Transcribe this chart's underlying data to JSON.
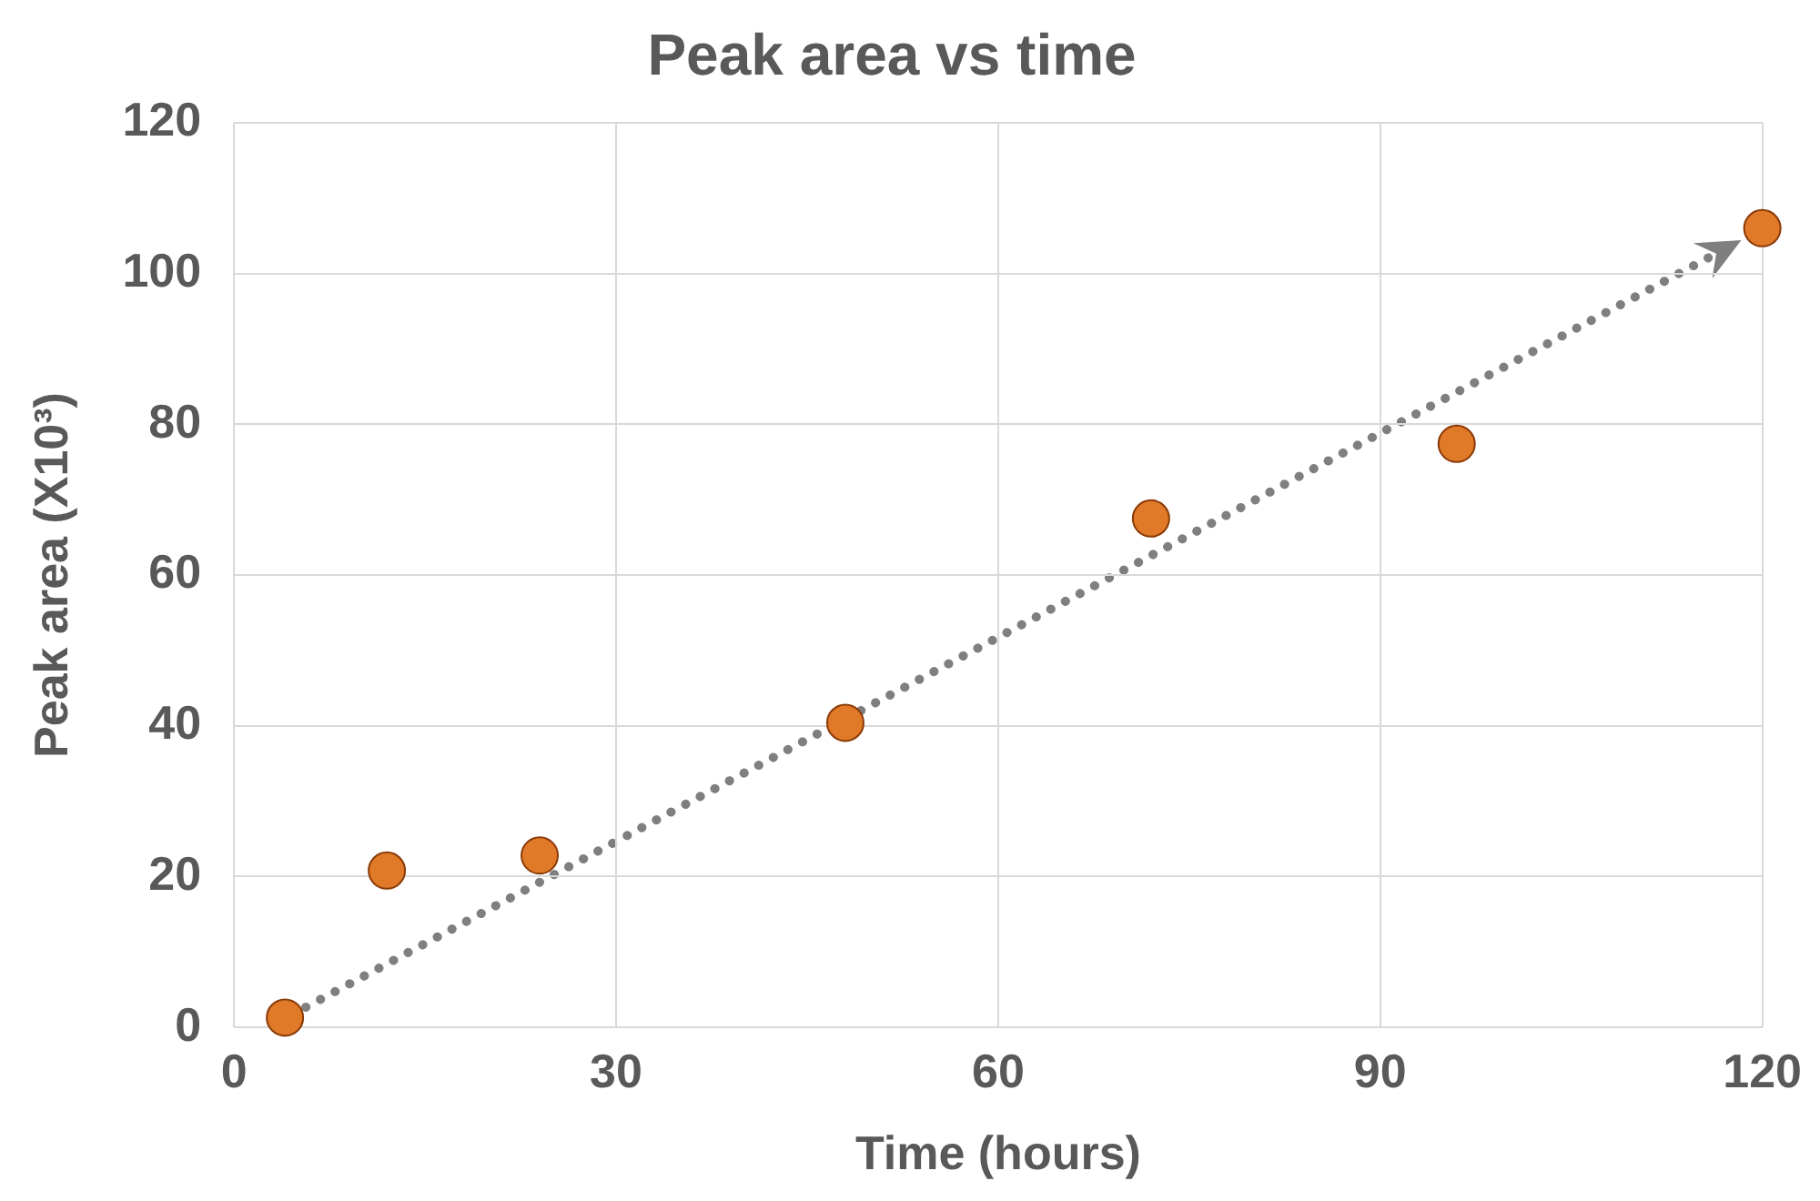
{
  "chart_data": {
    "type": "scatter",
    "title": "Peak area vs time",
    "xlabel": "Time (hours)",
    "ylabel": "Peak area (X10³)",
    "x": [
      4,
      12,
      24,
      48,
      72,
      96,
      120
    ],
    "series": [
      {
        "color": "#e07a28",
        "values": [
          1.3,
          20.8,
          22.8,
          40.4,
          67.5,
          77.4,
          106
        ],
        "marker": "circle"
      }
    ],
    "xlim": [
      0,
      120
    ],
    "xticks": [
      0,
      30,
      60,
      90,
      120
    ],
    "ylim": [
      0,
      120
    ],
    "yticks": [
      0,
      20,
      40,
      60,
      80,
      100,
      120
    ],
    "grid": true,
    "legend": false
  }
}
